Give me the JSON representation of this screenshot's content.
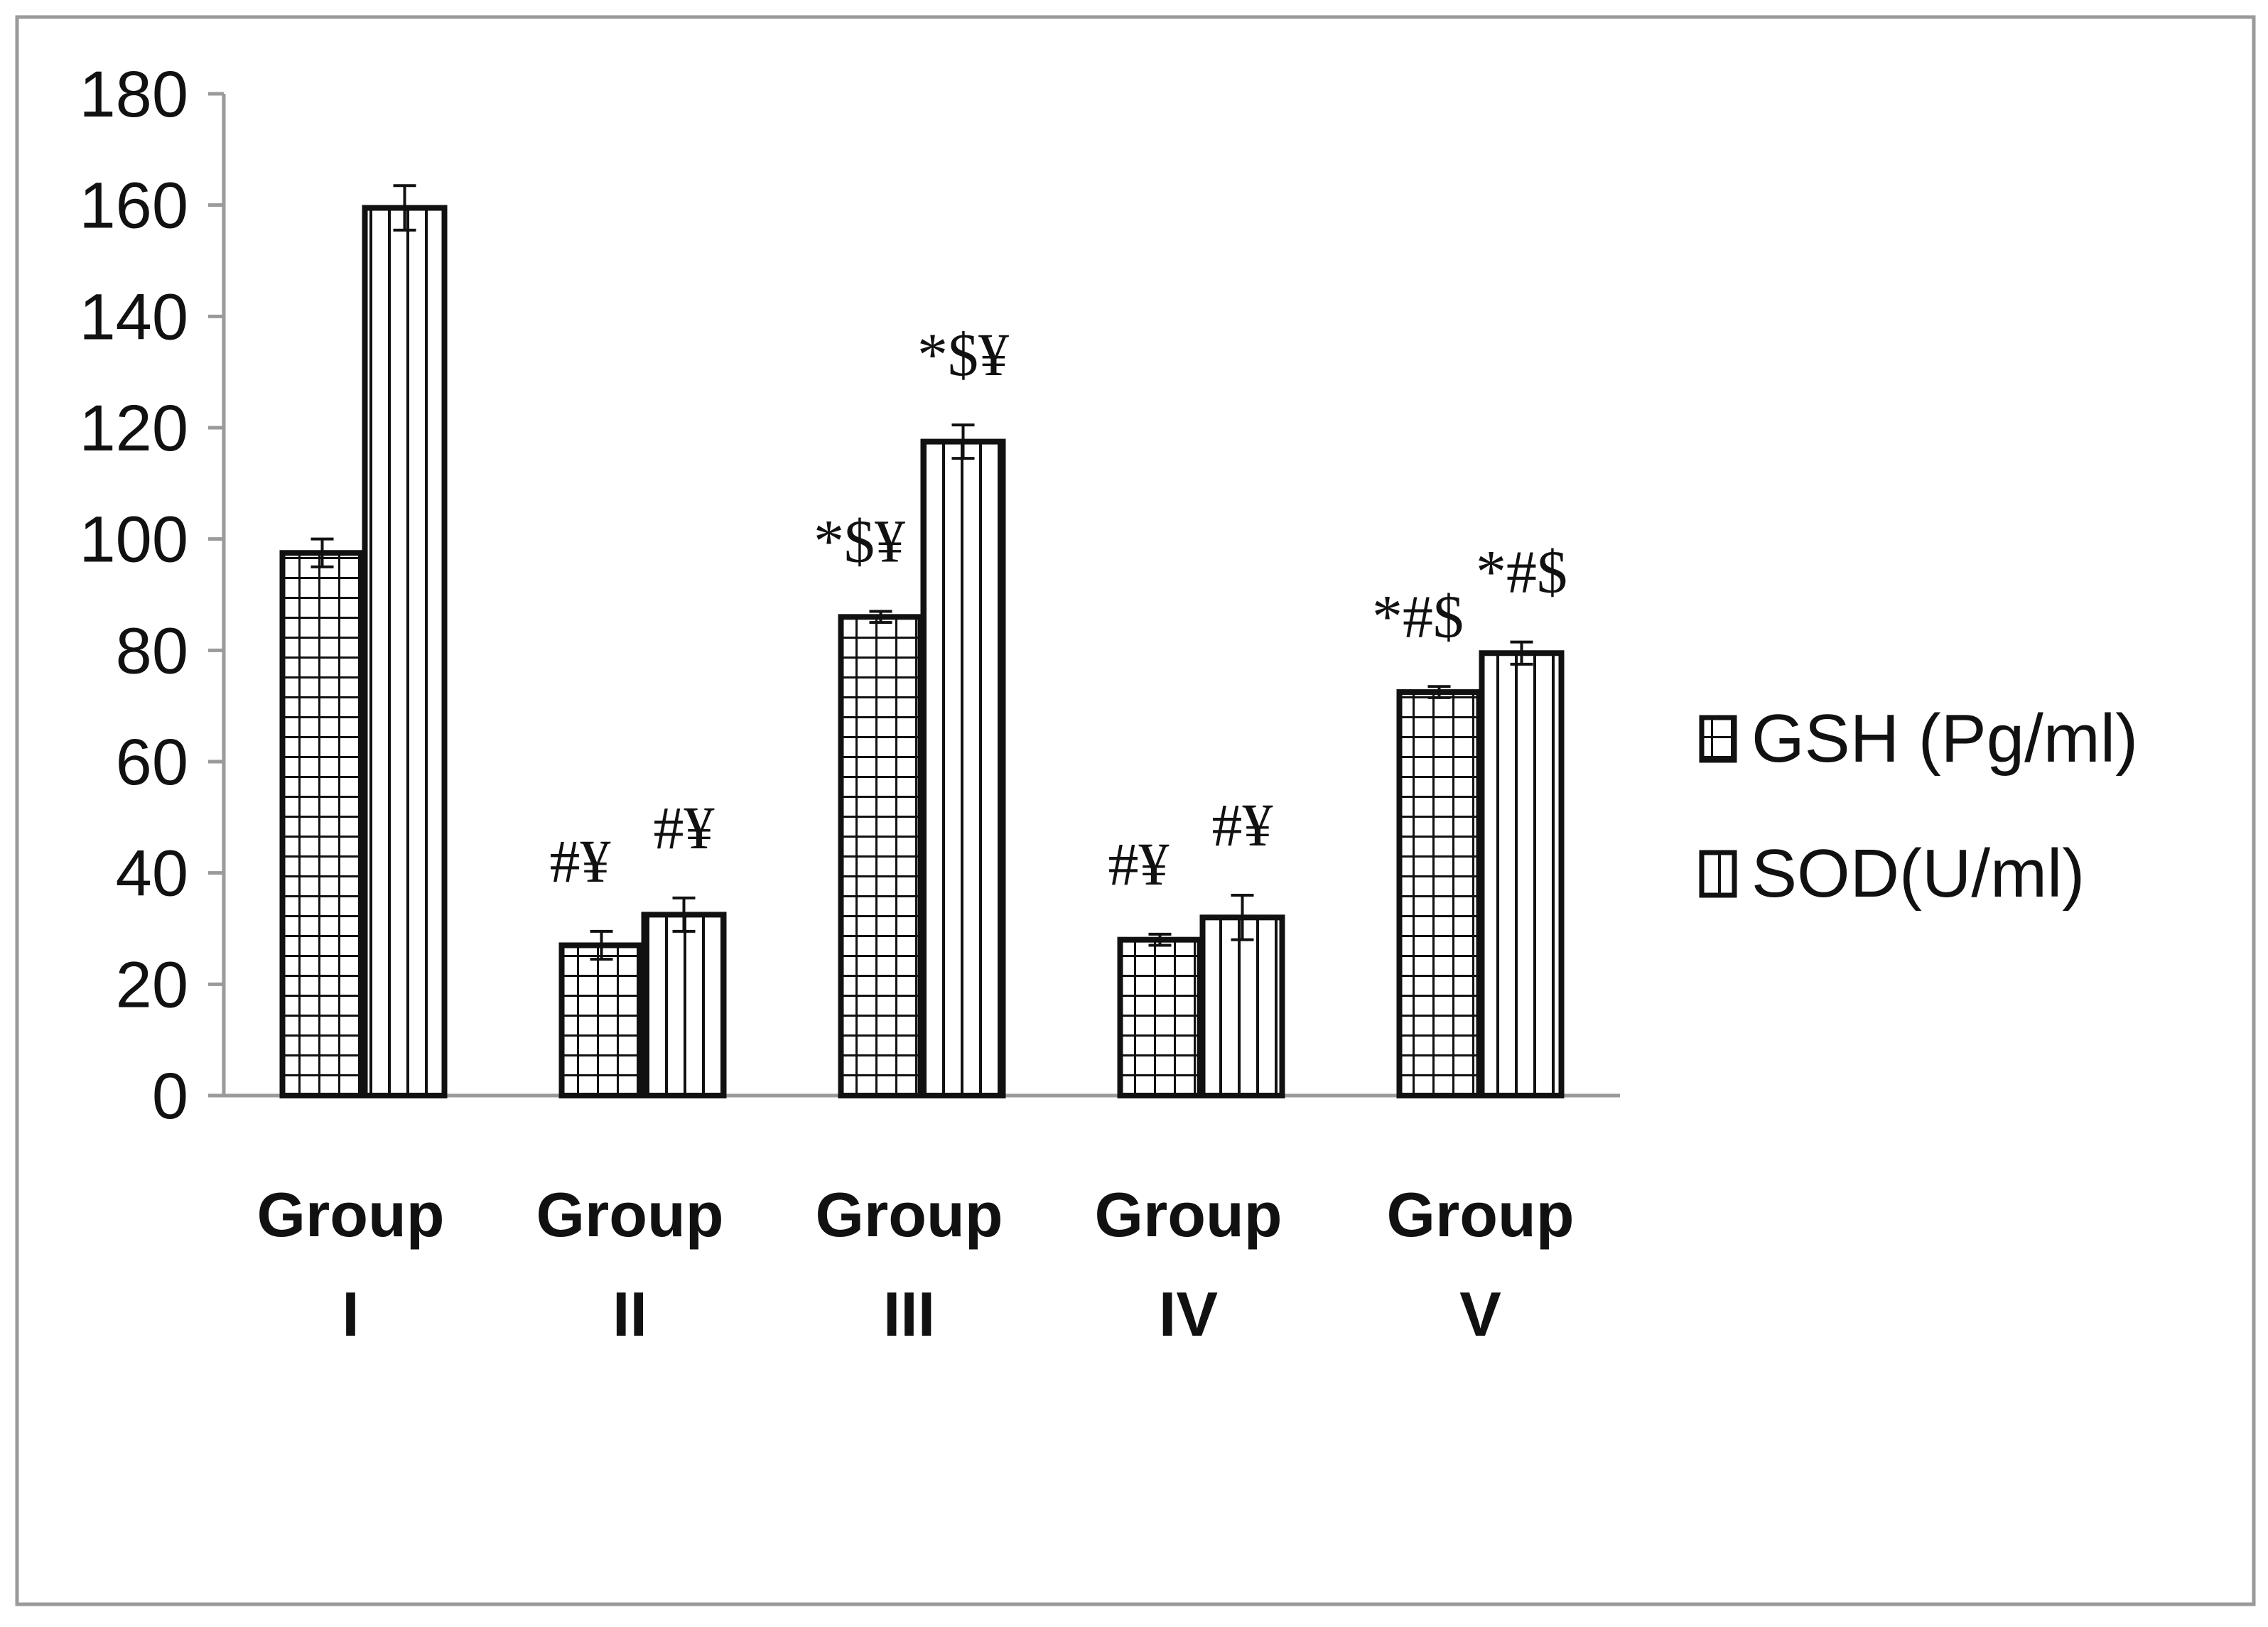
{
  "chart_data": {
    "type": "bar",
    "title": "",
    "xlabel": "",
    "ylabel": "",
    "ylim": [
      0,
      180
    ],
    "yticks": [
      0,
      20,
      40,
      60,
      80,
      100,
      120,
      140,
      160,
      180
    ],
    "grid": false,
    "legend_position": "right",
    "categories": [
      [
        "Group",
        "I"
      ],
      [
        "Group",
        "II"
      ],
      [
        "Group",
        "III"
      ],
      [
        "Group",
        "IV"
      ],
      [
        "Group",
        "V"
      ]
    ],
    "series": [
      {
        "name": "GSH (Pg/ml)",
        "pattern": "grid",
        "values": [
          97.5,
          27,
          86,
          28,
          72.5
        ],
        "errors": [
          2.5,
          2.5,
          1,
          1,
          1
        ],
        "annotations": [
          "",
          "#¥",
          "*$¥",
          "#¥",
          "*#$"
        ]
      },
      {
        "name": "SOD(U/ml)",
        "pattern": "vertical-stripes",
        "values": [
          159.5,
          32.5,
          117.5,
          32,
          79.5
        ],
        "errors": [
          4,
          3,
          3,
          4,
          2
        ],
        "annotations": [
          "",
          "#¥",
          "*$¥",
          "#¥",
          "*#$"
        ]
      }
    ]
  },
  "colors": {
    "bar_fill": "#ffffff",
    "bar_line": "#111111",
    "axis": "#9a9a9a",
    "frame": "#9a9a9a"
  }
}
